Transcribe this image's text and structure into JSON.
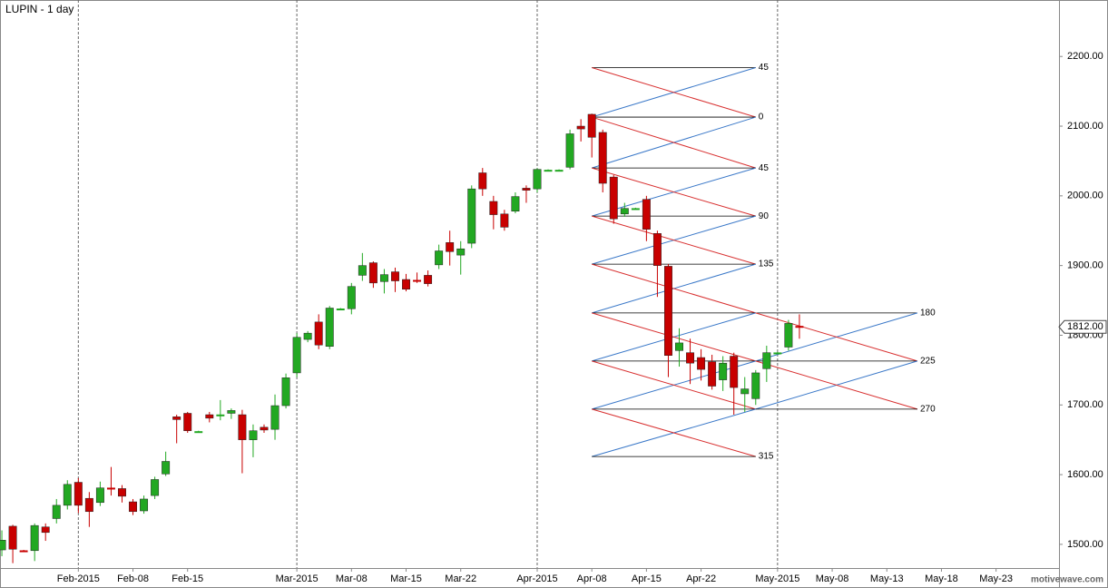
{
  "chart_data": {
    "type": "candlestick",
    "title": "LUPIN - 1 day",
    "watermark": "motivewave.com",
    "up_color": "#22a822",
    "down_color": "#c80000",
    "open": [
      1492,
      1526,
      1491,
      1491,
      1525,
      1537,
      1556,
      1589,
      1566,
      1560,
      1581,
      1580,
      1561,
      1548,
      1570,
      1601,
      1683,
      1688,
      1662,
      1686,
      1686,
      1688,
      1686,
      1650,
      1668,
      1665,
      1699,
      1746,
      1794,
      1819,
      1784,
      1838,
      1838,
      1886,
      1904,
      1877,
      1891,
      1880,
      1879,
      1886,
      1901,
      1933,
      1915,
      1932,
      2033,
      1992,
      1974,
      1978,
      2011,
      2010,
      2037,
      2037,
      2041,
      2100,
      2117,
      2091,
      2027,
      1974,
      1982,
      1995,
      1946,
      1899,
      1778,
      1775,
      1768,
      1762,
      1736,
      1770,
      1716,
      1709,
      1752,
      1775,
      1783,
      1813
    ],
    "high": [
      1520,
      1528,
      1492,
      1530,
      1530,
      1565,
      1592,
      1595,
      1575,
      1590,
      1611,
      1585,
      1565,
      1570,
      1597,
      1633,
      1686,
      1690,
      1663,
      1690,
      1707,
      1695,
      1693,
      1672,
      1672,
      1715,
      1745,
      1803,
      1806,
      1830,
      1842,
      1839,
      1875,
      1918,
      1906,
      1895,
      1897,
      1888,
      1890,
      1893,
      1930,
      1950,
      1935,
      2015,
      2040,
      2000,
      1980,
      2005,
      2015,
      2040,
      2038,
      2038,
      2095,
      2110,
      2118,
      2095,
      2030,
      1990,
      1983,
      2000,
      1950,
      1902,
      1810,
      1795,
      1780,
      1772,
      1770,
      1775,
      1740,
      1750,
      1785,
      1776,
      1822,
      1830
    ],
    "low": [
      1483,
      1473,
      1489,
      1476,
      1505,
      1530,
      1550,
      1545,
      1525,
      1555,
      1570,
      1560,
      1542,
      1544,
      1565,
      1598,
      1645,
      1660,
      1661,
      1675,
      1678,
      1680,
      1602,
      1625,
      1660,
      1650,
      1695,
      1740,
      1790,
      1780,
      1780,
      1837,
      1830,
      1878,
      1868,
      1860,
      1862,
      1863,
      1875,
      1870,
      1895,
      1900,
      1887,
      1925,
      2000,
      1952,
      1950,
      1975,
      1990,
      2005,
      2036,
      2036,
      2038,
      2078,
      2055,
      2005,
      1960,
      1970,
      1981,
      1935,
      1855,
      1740,
      1755,
      1730,
      1735,
      1722,
      1720,
      1686,
      1690,
      1700,
      1733,
      1774,
      1778,
      1795
    ],
    "close": [
      1506,
      1493,
      1490,
      1527,
      1517,
      1556,
      1586,
      1556,
      1547,
      1581,
      1580,
      1569,
      1547,
      1565,
      1593,
      1619,
      1679,
      1663,
      1662,
      1681,
      1686,
      1692,
      1650,
      1663,
      1664,
      1699,
      1739,
      1797,
      1803,
      1786,
      1839,
      1838,
      1870,
      1900,
      1875,
      1887,
      1878,
      1866,
      1878,
      1874,
      1921,
      1920,
      1924,
      2010,
      2010,
      1973,
      1955,
      1999,
      2008,
      2038,
      2037,
      2037,
      2089,
      2096,
      2084,
      2018,
      1967,
      1982,
      1982,
      1952,
      1900,
      1771,
      1789,
      1760,
      1751,
      1727,
      1760,
      1725,
      1723,
      1746,
      1775,
      1775,
      1817,
      1812
    ],
    "xlim": [
      -0.17,
      96.76
    ],
    "xticks": [
      {
        "value": 7,
        "label": "Feb-2015"
      },
      {
        "value": 12,
        "label": "Feb-08"
      },
      {
        "value": 17,
        "label": "Feb-15"
      },
      {
        "value": 27,
        "label": "Mar-2015"
      },
      {
        "value": 32,
        "label": "Mar-08"
      },
      {
        "value": 37,
        "label": "Mar-15"
      },
      {
        "value": 42,
        "label": "Mar-22"
      },
      {
        "value": 49,
        "label": "Apr-2015"
      },
      {
        "value": 54,
        "label": "Apr-08"
      },
      {
        "value": 59,
        "label": "Apr-15"
      },
      {
        "value": 64,
        "label": "Apr-22"
      },
      {
        "value": 71,
        "label": "May-2015"
      },
      {
        "value": 76,
        "label": "May-08"
      },
      {
        "value": 81,
        "label": "May-13"
      },
      {
        "value": 86,
        "label": "May-18"
      },
      {
        "value": 91,
        "label": "May-23"
      }
    ],
    "ylim": [
      1466,
      2281
    ],
    "yticks": [
      {
        "value": 1500,
        "label": "1500.00"
      },
      {
        "value": 1600,
        "label": "1600.00"
      },
      {
        "value": 1700,
        "label": "1700.00"
      },
      {
        "value": 1800,
        "label": "1800.00"
      },
      {
        "value": 1900,
        "label": "1900.00"
      },
      {
        "value": 2000,
        "label": "2000.00"
      },
      {
        "value": 2100,
        "label": "2100.00"
      },
      {
        "value": 2200,
        "label": "2200.00"
      }
    ],
    "last_price": {
      "value": 1812,
      "label": "1812.00"
    },
    "gann_box": {
      "x_start": 54,
      "x_end": 69,
      "x_extend_end": 83.8,
      "levels": [
        {
          "value": 2184,
          "label": "45"
        },
        {
          "value": 2113,
          "label": "0"
        },
        {
          "value": 2040,
          "label": "45"
        },
        {
          "value": 1971,
          "label": "90"
        },
        {
          "value": 1902,
          "label": "135"
        },
        {
          "value": 1832,
          "label": "180",
          "extended": true
        },
        {
          "value": 1763,
          "label": "225",
          "extended": true
        },
        {
          "value": 1694,
          "label": "270",
          "extended": true
        },
        {
          "value": 1626,
          "label": "315"
        }
      ]
    }
  }
}
